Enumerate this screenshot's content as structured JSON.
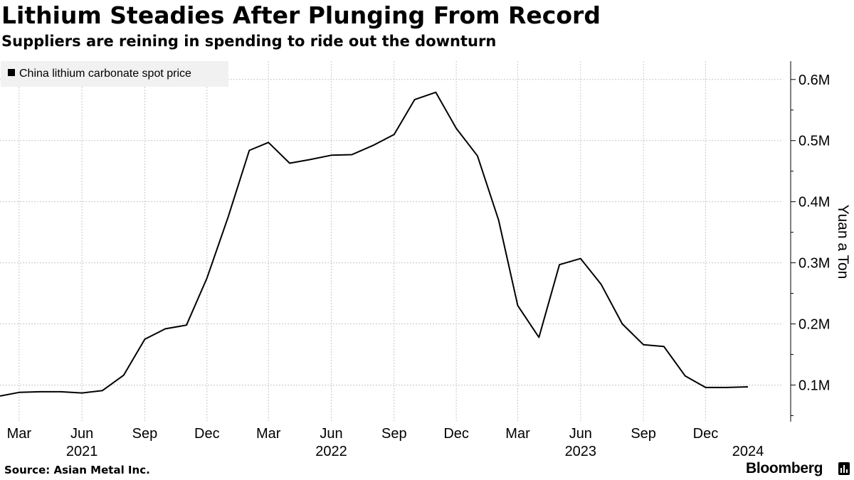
{
  "title": "Lithium Steadies After Plunging From Record",
  "subtitle": "Suppliers are reining in spending to ride out the downturn",
  "source": "Source: Asian Metal Inc.",
  "brand": "Bloomberg",
  "icons": {
    "brand": "bar-chart-icon",
    "legend": "square-swatch-icon"
  },
  "colors": {
    "line": "#000000",
    "grid": "#c8c8c8",
    "legend_bg": "#f1f1f1"
  },
  "chart_data": {
    "type": "line",
    "legend": {
      "position": "top-left",
      "entries": [
        "China lithium carbonate spot price"
      ]
    },
    "ylabel": "Yuan a Ton",
    "y_axis_side": "right",
    "ylim": [
      40000,
      630000
    ],
    "yticks": [
      {
        "value": 100000,
        "label": "0.1M"
      },
      {
        "value": 200000,
        "label": "0.2M"
      },
      {
        "value": 300000,
        "label": "0.3M"
      },
      {
        "value": 400000,
        "label": "0.4M"
      },
      {
        "value": 500000,
        "label": "0.5M"
      },
      {
        "value": 600000,
        "label": "0.6M"
      }
    ],
    "xlim": [
      "2021-02-01",
      "2024-03-21"
    ],
    "xticks": [
      {
        "date": "2021-03-01",
        "label": "Mar"
      },
      {
        "date": "2021-06-01",
        "label": "Jun"
      },
      {
        "date": "2021-09-01",
        "label": "Sep"
      },
      {
        "date": "2021-12-01",
        "label": "Dec"
      },
      {
        "date": "2022-03-01",
        "label": "Mar"
      },
      {
        "date": "2022-06-01",
        "label": "Jun"
      },
      {
        "date": "2022-09-01",
        "label": "Sep"
      },
      {
        "date": "2022-12-01",
        "label": "Dec"
      },
      {
        "date": "2023-03-01",
        "label": "Mar"
      },
      {
        "date": "2023-06-01",
        "label": "Jun"
      },
      {
        "date": "2023-09-01",
        "label": "Sep"
      },
      {
        "date": "2023-12-01",
        "label": "Dec"
      }
    ],
    "year_labels": [
      {
        "date": "2021-06-01",
        "label": "2021"
      },
      {
        "date": "2022-06-01",
        "label": "2022"
      },
      {
        "date": "2023-06-01",
        "label": "2023"
      },
      {
        "date": "2024-02-01",
        "label": "2024"
      }
    ],
    "grid": {
      "y": true,
      "x": true,
      "style": "dotted"
    },
    "series": [
      {
        "name": "China lithium carbonate spot price",
        "x": [
          "2021-02-01",
          "2021-03-01",
          "2021-04-01",
          "2021-05-01",
          "2021-06-01",
          "2021-07-01",
          "2021-08-01",
          "2021-09-01",
          "2021-10-01",
          "2021-11-01",
          "2021-12-01",
          "2022-01-01",
          "2022-02-01",
          "2022-03-01",
          "2022-04-01",
          "2022-05-01",
          "2022-06-01",
          "2022-07-01",
          "2022-08-01",
          "2022-09-01",
          "2022-10-01",
          "2022-11-01",
          "2022-12-01",
          "2023-01-01",
          "2023-02-01",
          "2023-03-01",
          "2023-04-01",
          "2023-05-01",
          "2023-06-01",
          "2023-07-01",
          "2023-08-01",
          "2023-09-01",
          "2023-10-01",
          "2023-11-01",
          "2023-12-01",
          "2024-01-01",
          "2024-02-01"
        ],
        "values": [
          82000,
          88000,
          89000,
          89000,
          87000,
          91000,
          116000,
          175000,
          192000,
          198000,
          275000,
          375000,
          484000,
          497000,
          463000,
          469000,
          476000,
          477000,
          492000,
          510000,
          567000,
          579000,
          520000,
          475000,
          370000,
          230000,
          178000,
          297000,
          307000,
          265000,
          200000,
          166000,
          163000,
          115000,
          96000,
          96000,
          97000
        ]
      }
    ]
  }
}
